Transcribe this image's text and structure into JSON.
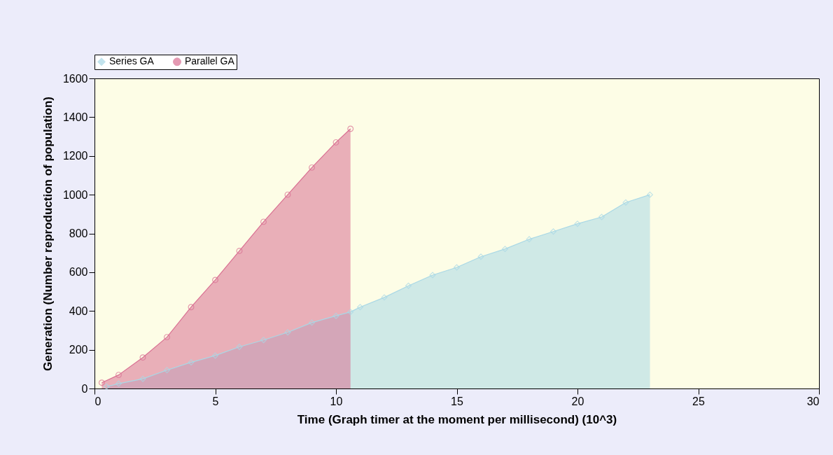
{
  "chart_data": {
    "type": "area",
    "xlabel": "Time (Graph timer at the moment per millisecond) (10^3)",
    "ylabel": "Generation (Number reproduction of population)",
    "xlim": [
      0,
      30
    ],
    "ylim": [
      0,
      1600
    ],
    "xticks": [
      0,
      5,
      10,
      15,
      20,
      25,
      30
    ],
    "yticks": [
      0,
      200,
      400,
      600,
      800,
      1000,
      1200,
      1400,
      1600
    ],
    "grid": false,
    "legend": "top left",
    "line_style": "solid",
    "series": [
      {
        "name": "Series GA",
        "color": "#a9d8e6",
        "marker": "diamond",
        "x": [
          0.5,
          1,
          2,
          3,
          4,
          5,
          6,
          7,
          8,
          9,
          10,
          10.6,
          11,
          12,
          13,
          14,
          15,
          16,
          17,
          18,
          19,
          20,
          21,
          22,
          23
        ],
        "values": [
          10,
          25,
          50,
          95,
          135,
          170,
          215,
          250,
          290,
          340,
          375,
          395,
          420,
          470,
          530,
          585,
          625,
          680,
          720,
          770,
          810,
          850,
          885,
          960,
          1000
        ]
      },
      {
        "name": "Parallel GA",
        "color": "#d96f92",
        "marker": "circle",
        "x": [
          0.3,
          1,
          2,
          3,
          4,
          5,
          6,
          7,
          8,
          9,
          10,
          10.6
        ],
        "values": [
          30,
          70,
          160,
          265,
          420,
          560,
          710,
          860,
          1000,
          1140,
          1270,
          1340
        ]
      }
    ]
  }
}
